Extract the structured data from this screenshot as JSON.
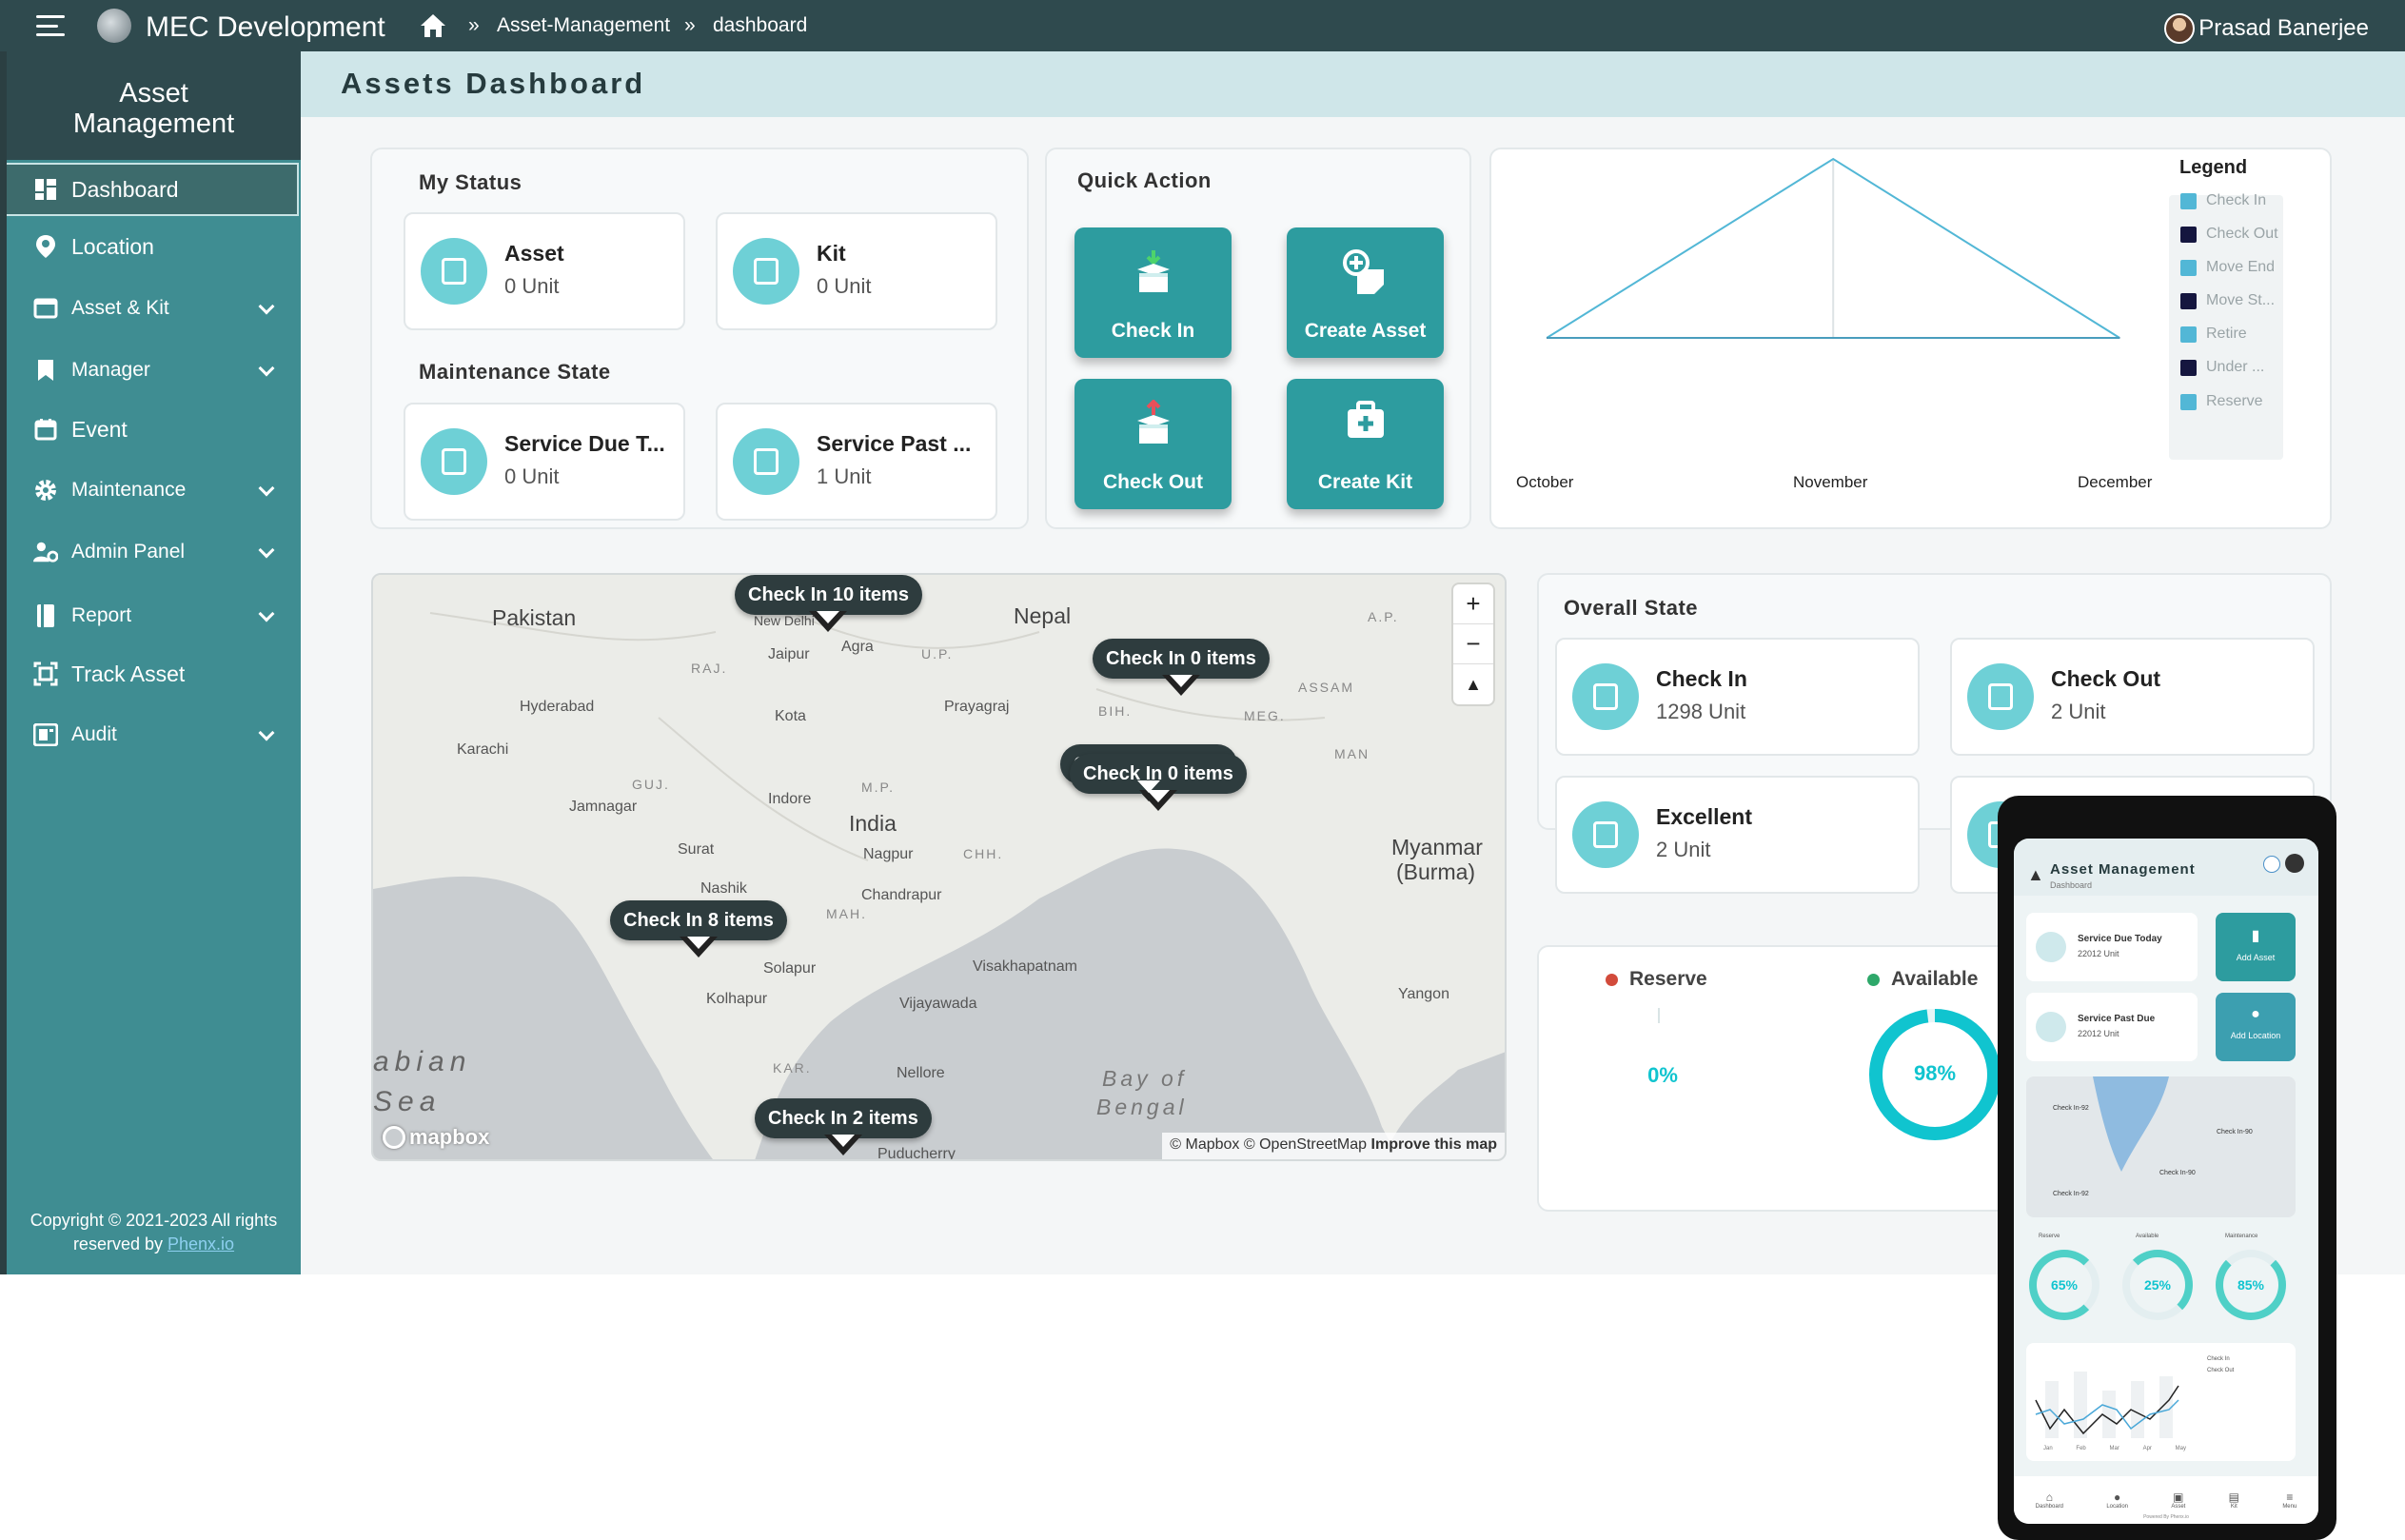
{
  "topbar": {
    "app_title": "MEC Development",
    "breadcrumb": [
      "»",
      "Asset-Management",
      "»",
      "dashboard"
    ],
    "user_name": "Prasad Banerjee"
  },
  "sidebar": {
    "heading_line1": "Asset",
    "heading_line2": "Management",
    "items": [
      {
        "label": "Dashboard",
        "icon": "dashboard-icon"
      },
      {
        "label": "Location",
        "icon": "location-pin-icon"
      },
      {
        "label": "Asset & Kit",
        "icon": "window-icon"
      },
      {
        "label": "Manager",
        "icon": "bookmark-icon"
      },
      {
        "label": "Event",
        "icon": "calendar-icon"
      },
      {
        "label": "Maintenance",
        "icon": "gear-icon"
      },
      {
        "label": "Admin Panel",
        "icon": "user-gear-icon"
      },
      {
        "label": "Report",
        "icon": "report-icon"
      },
      {
        "label": "Track Asset",
        "icon": "track-icon"
      },
      {
        "label": "Audit",
        "icon": "audit-icon"
      }
    ],
    "copyright_line1": "Copyright © 2021-2023 All rights",
    "copyright_line2": "reserved by",
    "copyright_link": "Phenx.io"
  },
  "page": {
    "title": "Assets Dashboard"
  },
  "my_status": {
    "title": "My Status",
    "items": [
      {
        "label": "Asset",
        "value": "0 Unit"
      },
      {
        "label": "Kit",
        "value": "0 Unit"
      }
    ]
  },
  "maintenance_state": {
    "title": "Maintenance State",
    "items": [
      {
        "label": "Service Due T...",
        "value": "0 Unit"
      },
      {
        "label": "Service Past ...",
        "value": "1 Unit"
      }
    ]
  },
  "quick_action": {
    "title": "Quick Action",
    "buttons": [
      "Check In",
      "Create Asset",
      "Check Out",
      "Create Kit"
    ]
  },
  "chart_data": {
    "type": "line",
    "categories": [
      "October",
      "November",
      "December"
    ],
    "series": [
      {
        "name": "Check In",
        "values": [
          0,
          1,
          0
        ],
        "color": "#52b7d6"
      },
      {
        "name": "Check Out",
        "values": [
          0,
          0,
          0
        ],
        "color": "#15163f"
      },
      {
        "name": "Move End",
        "values": [
          0,
          0,
          0
        ],
        "color": "#52b7d6"
      },
      {
        "name": "Move St...",
        "values": [
          0,
          0,
          0
        ],
        "color": "#15163f"
      },
      {
        "name": "Retire",
        "values": [
          0,
          0,
          0
        ],
        "color": "#52b7d6"
      },
      {
        "name": "Under ...",
        "values": [
          0,
          0,
          0
        ],
        "color": "#15163f"
      },
      {
        "name": "Reserve",
        "values": [
          0,
          0,
          0
        ],
        "color": "#52b7d6"
      }
    ],
    "legend_title": "Legend",
    "legend_position": "right",
    "grid": false
  },
  "map": {
    "markers": [
      "Check In 10 items",
      "Check In 0 items",
      "Check In 0 items",
      "Check In 0 items",
      "Check In 8 items",
      "Check In 2 items"
    ],
    "places": [
      "Pakistan",
      "Nepal",
      "India",
      "Myanmar",
      "(Burma)",
      "Hyderabad",
      "Karachi",
      "Jamnagar",
      "Surat",
      "Nashik",
      "Indore",
      "Jaipur",
      "Agra",
      "Kota",
      "Prayagraj",
      "Nagpur",
      "Chandrapur",
      "Solapur",
      "Kolhapur",
      "Vijayawada",
      "Visakhapatnam",
      "Nellore",
      "Puducherry",
      "Yangon",
      "Bay of",
      "Bengal",
      "abian",
      "Sea",
      "RAJ.",
      "GUJ.",
      "M.P.",
      "U.P.",
      "BIH.",
      "MAH.",
      "CHH.",
      "KAR.",
      "ASSAM",
      "MEG.",
      "MAN",
      "A.P.",
      "New Delhi"
    ],
    "zoom_in": "+",
    "zoom_out": "−",
    "compass": "▲",
    "logo_text": "mapbox",
    "attribution": "© Mapbox © OpenStreetMap",
    "improve": "Improve this map"
  },
  "overall_state": {
    "title": "Overall State",
    "items": [
      {
        "label": "Check In",
        "value": "1298 Unit"
      },
      {
        "label": "Check Out",
        "value": "2 Unit"
      },
      {
        "label": "Excellent",
        "value": "2 Unit"
      }
    ]
  },
  "gauges": [
    {
      "label": "Reserve",
      "value": "0%",
      "fraction": 0,
      "dot_color": "#d24b3b"
    },
    {
      "label": "Available",
      "value": "98%",
      "fraction": 0.98,
      "dot_color": "#2ea86a"
    }
  ],
  "phone": {
    "title": "Asset Management",
    "subtitle": "Dashboard",
    "cards": [
      {
        "label": "Service Due Today",
        "value": "22012 Unit"
      },
      {
        "label": "Service Past Due",
        "value": "22012 Unit"
      }
    ],
    "buttons": [
      "Add Asset",
      "Add Location"
    ],
    "pins": [
      "Check In-92",
      "Check In-90",
      "Check In-90",
      "Check In-92"
    ],
    "gauge_labels": [
      "Reserve",
      "Available",
      "Maintenance"
    ],
    "gauges": [
      "65%",
      "25%",
      "85%"
    ],
    "legend": [
      "Check In",
      "Check Out"
    ],
    "months": [
      "Jan",
      "Feb",
      "Mar",
      "Apr",
      "May"
    ],
    "nav": [
      "Dashboard",
      "Location",
      "Asset",
      "Kit",
      "Menu"
    ],
    "footer": "Powered By Phenx.io"
  },
  "colors": {
    "teal": "#2d9c9f",
    "sidebar": "#3f8d92",
    "topbar": "#2f4a4e",
    "accent": "#10c4cf"
  }
}
